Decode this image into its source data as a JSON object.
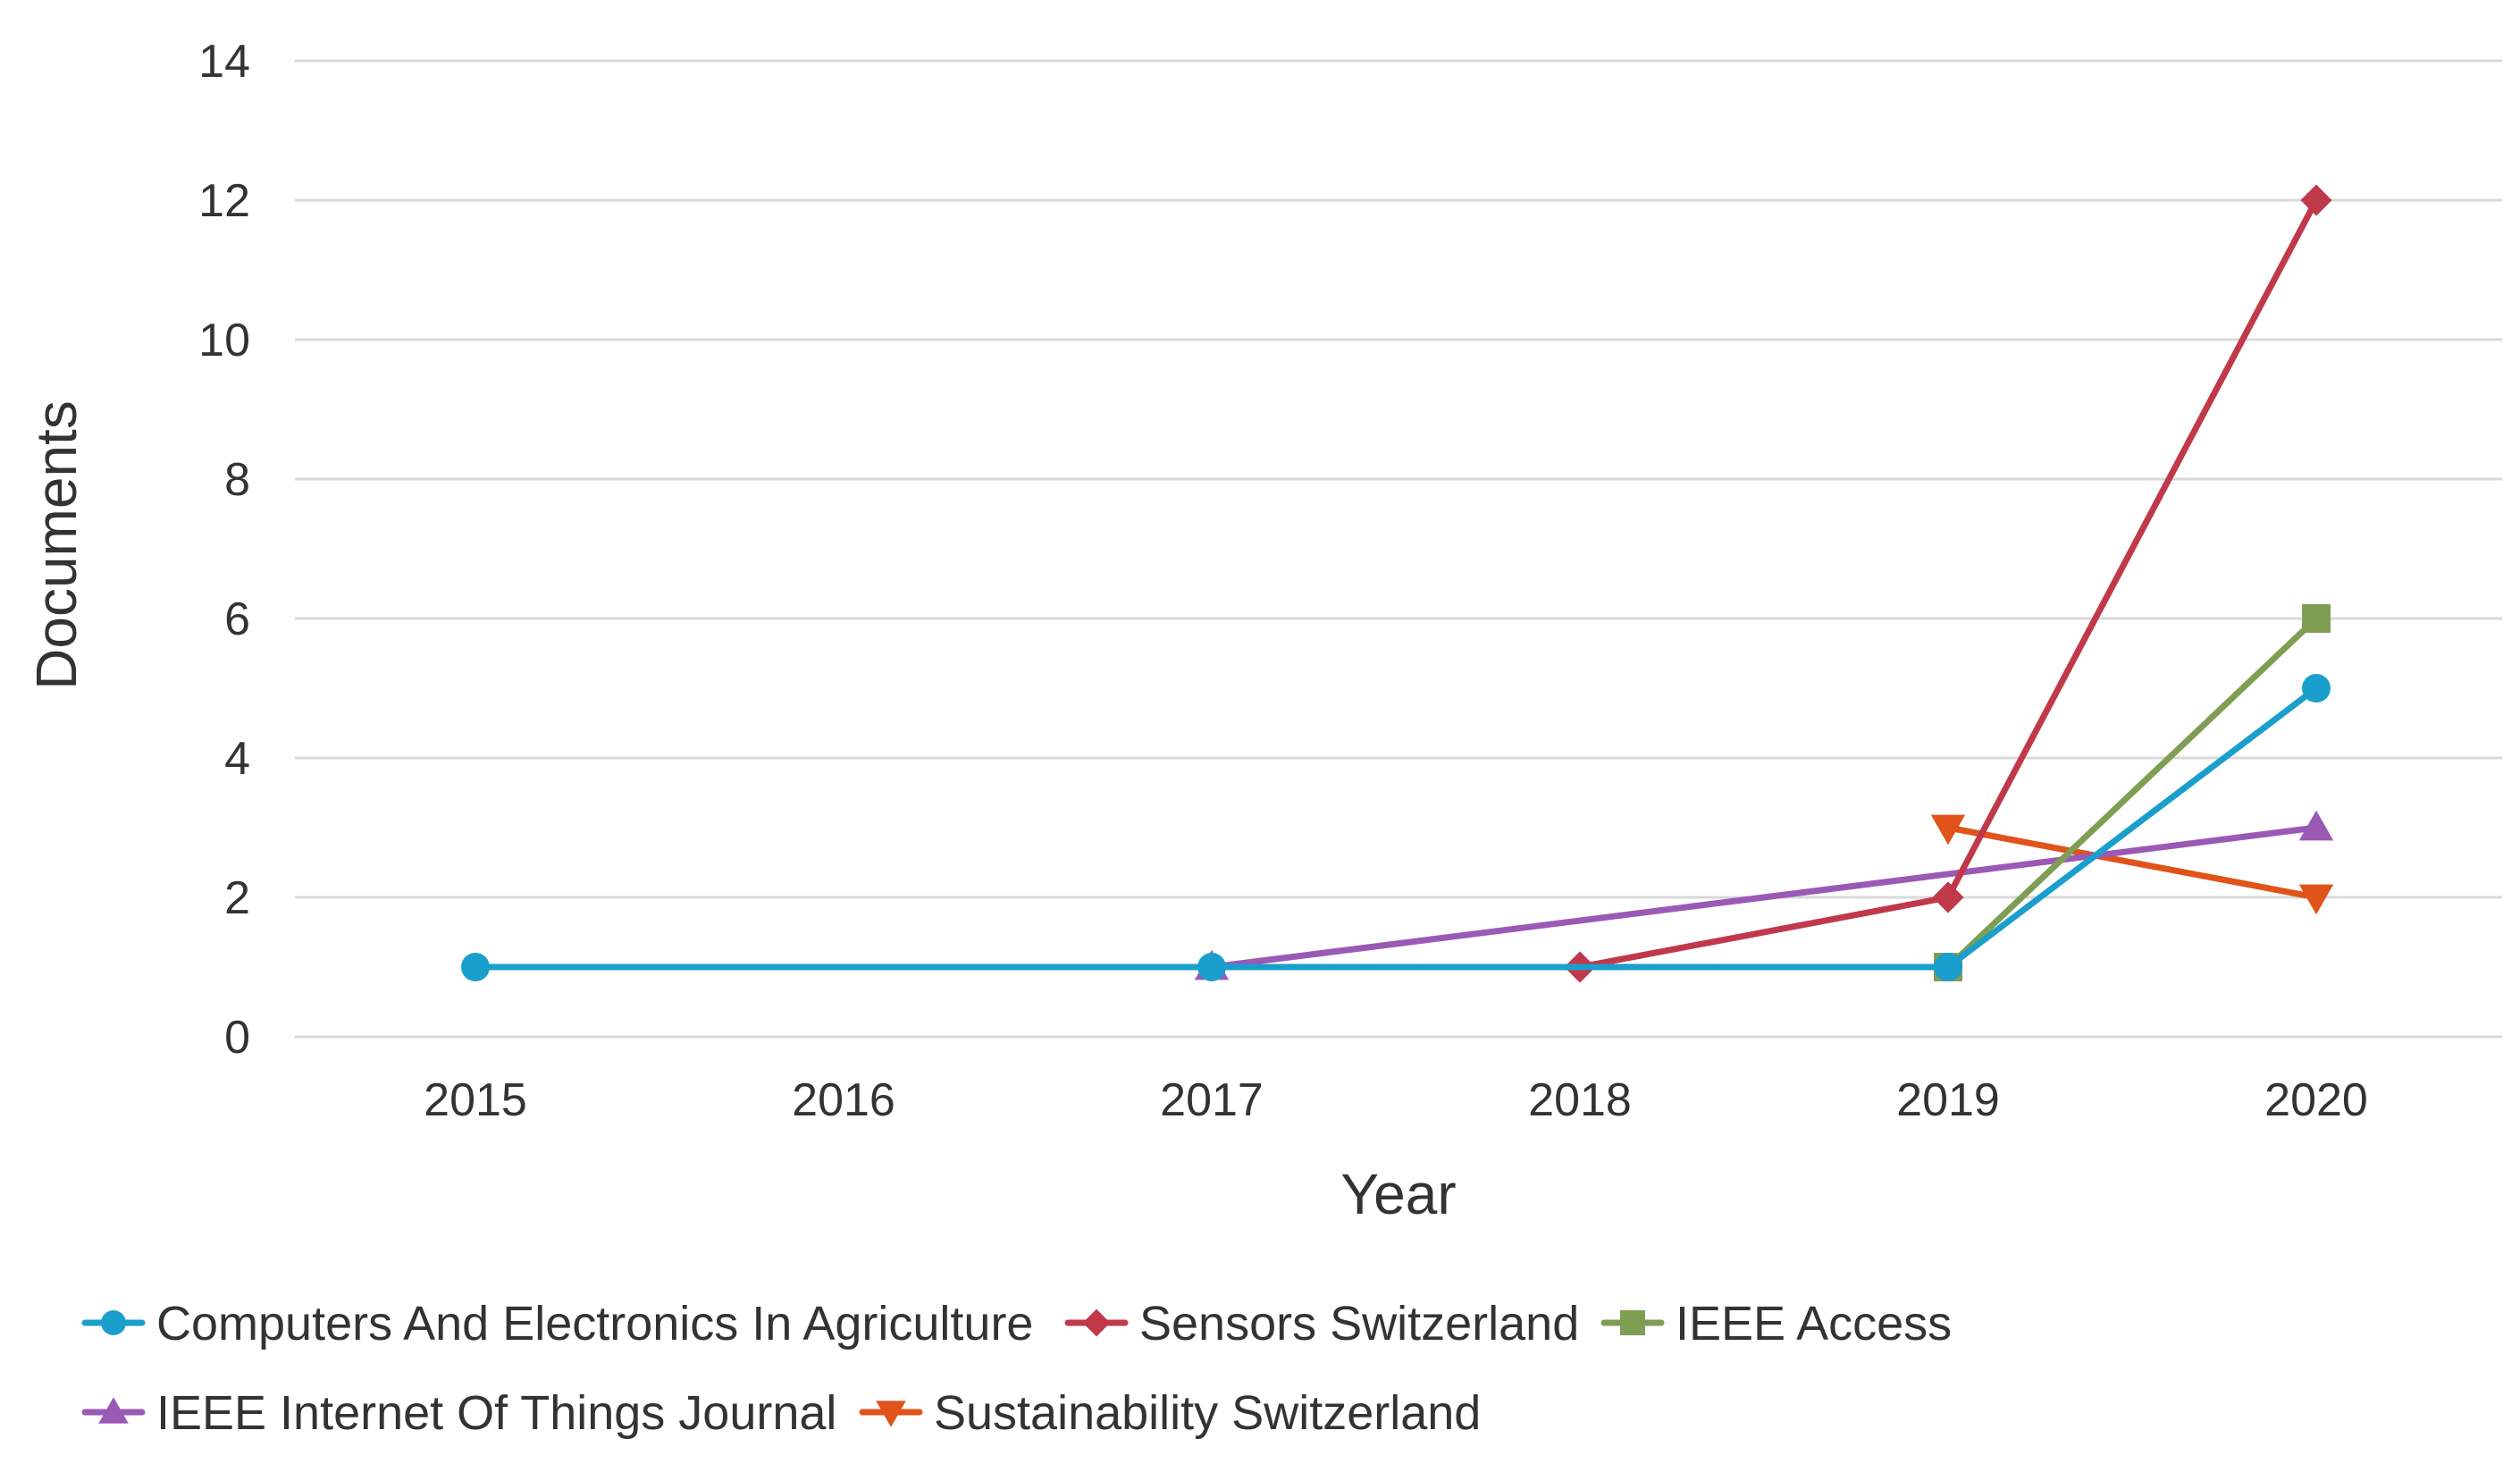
{
  "chart_data": {
    "type": "line",
    "title": "",
    "xlabel": "Year",
    "ylabel": "Documents",
    "x": [
      2015,
      2016,
      2017,
      2018,
      2019,
      2020
    ],
    "x_tick_labels": [
      "2015",
      "2016",
      "2017",
      "2018",
      "2019",
      "2020"
    ],
    "ylim": [
      0,
      14
    ],
    "y_ticks": [
      0,
      2,
      4,
      6,
      8,
      10,
      12,
      14
    ],
    "y_tick_labels": [
      "0",
      "2",
      "4",
      "6",
      "8",
      "10",
      "12",
      "14"
    ],
    "grid": "horizontal",
    "legend_position": "bottom",
    "series": [
      {
        "name": "Computers And Electronics In Agriculture",
        "color": "#1a9fcc",
        "marker": "circle",
        "points": [
          [
            2015,
            1
          ],
          [
            2017,
            1
          ],
          [
            2019,
            1
          ],
          [
            2020,
            5
          ]
        ]
      },
      {
        "name": "Sensors Switzerland",
        "color": "#c0394b",
        "marker": "diamond",
        "points": [
          [
            2018,
            1
          ],
          [
            2019,
            2
          ],
          [
            2020,
            12
          ]
        ]
      },
      {
        "name": "IEEE Access",
        "color": "#7f9e54",
        "marker": "square",
        "points": [
          [
            2019,
            1
          ],
          [
            2020,
            6
          ]
        ]
      },
      {
        "name": "IEEE Internet Of Things Journal",
        "color": "#9b59b6",
        "marker": "triangle-up",
        "points": [
          [
            2017,
            1
          ],
          [
            2020,
            3
          ]
        ]
      },
      {
        "name": "Sustainability Switzerland",
        "color": "#e0531b",
        "marker": "triangle-down",
        "points": [
          [
            2019,
            3
          ],
          [
            2020,
            2
          ]
        ]
      }
    ]
  }
}
